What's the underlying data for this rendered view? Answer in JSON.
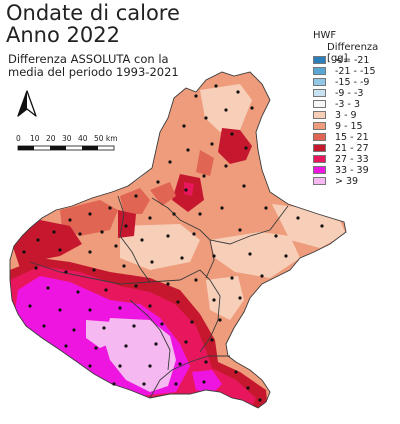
{
  "title_line1": "Ondate di calore",
  "title_line2": "Anno 2022",
  "subtitle_line1": "Differenza ASSOLUTA con la",
  "subtitle_line2": "media del periodo 1993-2021",
  "legend": {
    "title": "HWF",
    "subtitle": "Differenza [gg]",
    "classes": [
      {
        "label": "<= -21",
        "color": "#2c7fb8"
      },
      {
        "label": "-21 - -15",
        "color": "#5aa6d6"
      },
      {
        "label": "-15 - -9",
        "color": "#93c7e6"
      },
      {
        "label": "-9 - -3",
        "color": "#c9e2f2"
      },
      {
        "label": "-3 - 3",
        "color": "#f6f6f4"
      },
      {
        "label": "3 - 9",
        "color": "#f7cfb8"
      },
      {
        "label": "9 - 15",
        "color": "#ee9c7c"
      },
      {
        "label": "15 - 21",
        "color": "#e06553"
      },
      {
        "label": "21 - 27",
        "color": "#c5182e"
      },
      {
        "label": "27 - 33",
        "color": "#e8175d"
      },
      {
        "label": "33 - 39",
        "color": "#ee15e0"
      },
      {
        "label": "> 39",
        "color": "#f5b8f0"
      }
    ]
  },
  "scale_bar": {
    "ticks": [
      "0",
      "10",
      "20",
      "30",
      "40",
      "50 km"
    ]
  },
  "north_arrow_icon": "north-arrow-icon",
  "colors": {
    "border": "#3a3a3a",
    "station": "#111111"
  }
}
